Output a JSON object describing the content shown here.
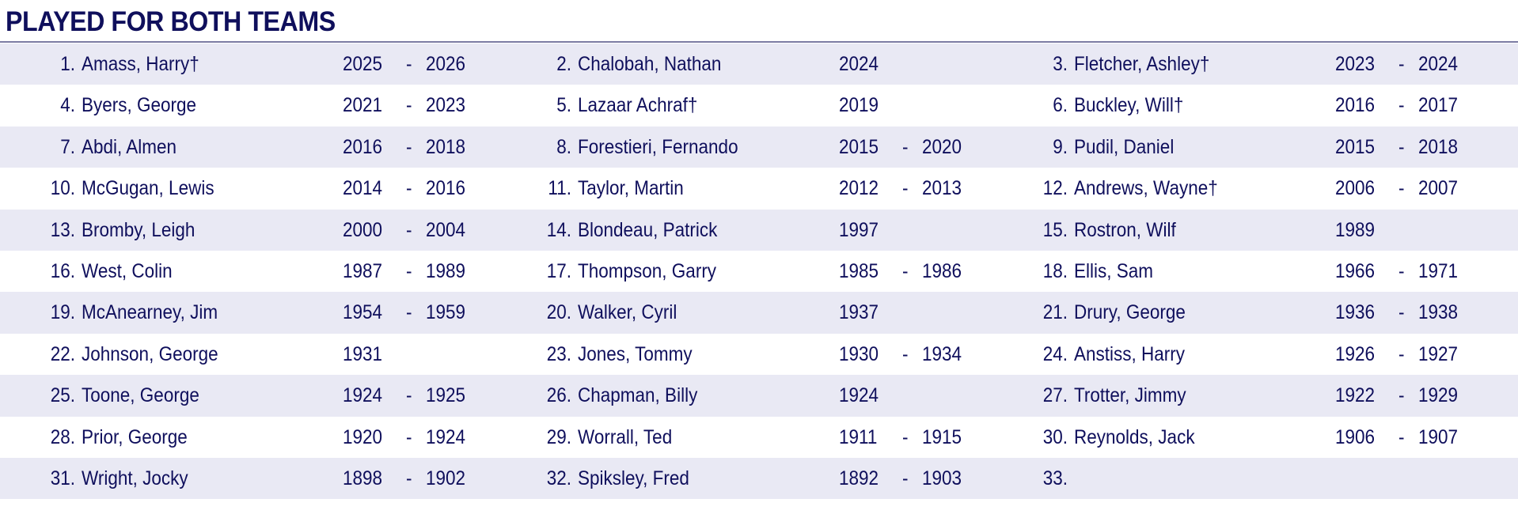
{
  "title": "PLAYED FOR BOTH TEAMS",
  "colors": {
    "text": "#0f0f5c",
    "band": "#e9e9f4",
    "rule": "#7b7ba3"
  },
  "entries": [
    {
      "num": "1.",
      "name": "Amass, Harry†",
      "from": "2025",
      "to": "2026"
    },
    {
      "num": "2.",
      "name": "Chalobah, Nathan",
      "from": "2024",
      "to": ""
    },
    {
      "num": "3.",
      "name": "Fletcher, Ashley†",
      "from": "2023",
      "to": "2024"
    },
    {
      "num": "4.",
      "name": "Byers, George",
      "from": "2021",
      "to": "2023"
    },
    {
      "num": "5.",
      "name": "Lazaar Achraf†",
      "from": "2019",
      "to": ""
    },
    {
      "num": "6.",
      "name": "Buckley, Will†",
      "from": "2016",
      "to": "2017"
    },
    {
      "num": "7.",
      "name": "Abdi, Almen",
      "from": "2016",
      "to": "2018"
    },
    {
      "num": "8.",
      "name": "Forestieri, Fernando",
      "from": "2015",
      "to": "2020"
    },
    {
      "num": "9.",
      "name": "Pudil, Daniel",
      "from": "2015",
      "to": "2018"
    },
    {
      "num": "10.",
      "name": "McGugan, Lewis",
      "from": "2014",
      "to": "2016"
    },
    {
      "num": "11.",
      "name": "Taylor, Martin",
      "from": "2012",
      "to": "2013"
    },
    {
      "num": "12.",
      "name": "Andrews, Wayne†",
      "from": "2006",
      "to": "2007"
    },
    {
      "num": "13.",
      "name": "Bromby, Leigh",
      "from": "2000",
      "to": "2004"
    },
    {
      "num": "14.",
      "name": "Blondeau, Patrick",
      "from": "1997",
      "to": ""
    },
    {
      "num": "15.",
      "name": "Rostron, Wilf",
      "from": "1989",
      "to": ""
    },
    {
      "num": "16.",
      "name": "West, Colin",
      "from": "1987",
      "to": "1989"
    },
    {
      "num": "17.",
      "name": "Thompson, Garry",
      "from": "1985",
      "to": "1986"
    },
    {
      "num": "18.",
      "name": "Ellis, Sam",
      "from": "1966",
      "to": "1971"
    },
    {
      "num": "19.",
      "name": "McAnearney, Jim",
      "from": "1954",
      "to": "1959"
    },
    {
      "num": "20.",
      "name": "Walker, Cyril",
      "from": "1937",
      "to": ""
    },
    {
      "num": "21.",
      "name": "Drury, George",
      "from": "1936",
      "to": "1938"
    },
    {
      "num": "22.",
      "name": "Johnson, George",
      "from": "1931",
      "to": ""
    },
    {
      "num": "23.",
      "name": "Jones, Tommy",
      "from": "1930",
      "to": "1934"
    },
    {
      "num": "24.",
      "name": "Anstiss, Harry",
      "from": "1926",
      "to": "1927"
    },
    {
      "num": "25.",
      "name": "Toone, George",
      "from": "1924",
      "to": "1925"
    },
    {
      "num": "26.",
      "name": "Chapman, Billy",
      "from": "1924",
      "to": ""
    },
    {
      "num": "27.",
      "name": "Trotter, Jimmy",
      "from": "1922",
      "to": "1929"
    },
    {
      "num": "28.",
      "name": "Prior, George",
      "from": "1920",
      "to": "1924"
    },
    {
      "num": "29.",
      "name": "Worrall, Ted",
      "from": "1911",
      "to": "1915"
    },
    {
      "num": "30.",
      "name": "Reynolds, Jack",
      "from": "1906",
      "to": "1907"
    },
    {
      "num": "31.",
      "name": "Wright, Jocky",
      "from": "1898",
      "to": "1902"
    },
    {
      "num": "32.",
      "name": "Spiksley, Fred",
      "from": "1892",
      "to": "1903"
    },
    {
      "num": "33.",
      "name": "",
      "from": "",
      "to": ""
    }
  ]
}
